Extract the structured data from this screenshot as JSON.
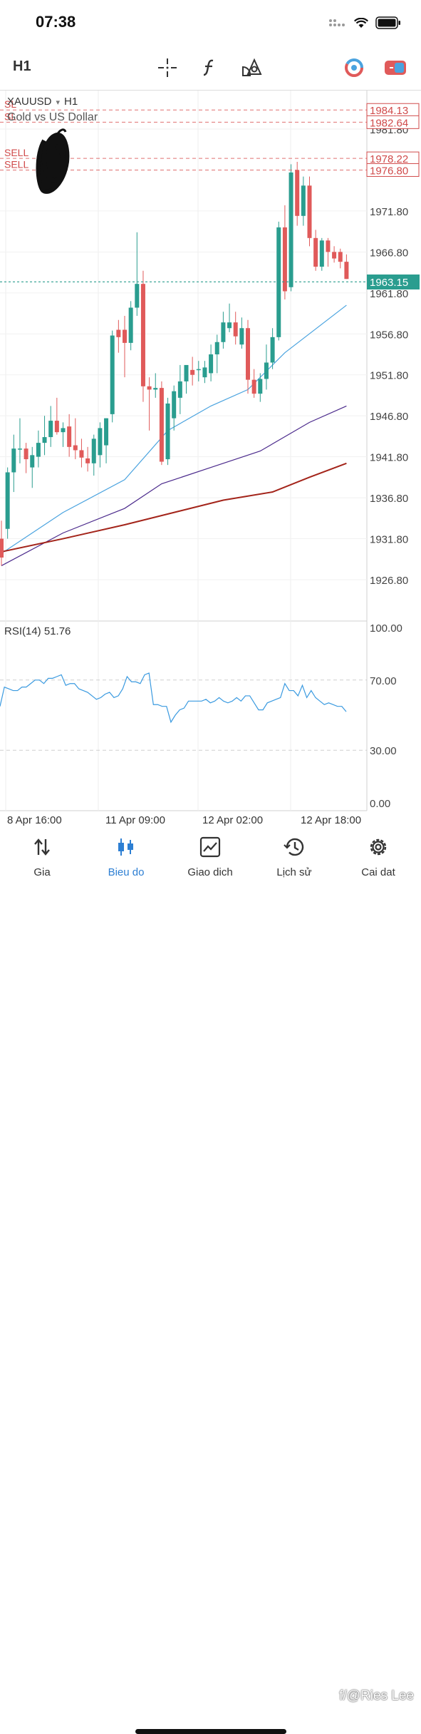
{
  "status": {
    "time": "07:38"
  },
  "toolbar": {
    "timeframe": "H1"
  },
  "chart": {
    "symbol": "XAUUSD",
    "symbol_tf": "H1",
    "description": "Gold vs US Dollar",
    "current_price": "1963.15",
    "order_lines": [
      {
        "label": "SL",
        "price": "1984.13",
        "value": 1984.13
      },
      {
        "label": "SL",
        "price": "1982.64",
        "value": 1982.64
      },
      {
        "label": "SELL",
        "price": "1978.22",
        "value": 1978.22
      },
      {
        "label": "SELL",
        "price": "1976.80",
        "value": 1976.8
      }
    ],
    "price_ticks": [
      "1981.80",
      "1971.80",
      "1966.80",
      "1961.80",
      "1956.80",
      "1951.80",
      "1946.80",
      "1941.80",
      "1936.80",
      "1931.80",
      "1926.80"
    ],
    "time_ticks": [
      "8 Apr 16:00",
      "11 Apr 09:00",
      "12 Apr 02:00",
      "12 Apr 18:00"
    ],
    "rsi_label": "RSI(14) 51.76",
    "rsi_ticks": [
      "100.00",
      "70.00",
      "30.00",
      "0.00"
    ],
    "colors": {
      "up": "#2a9d8f",
      "down": "#e05a5a",
      "ma_fast": "#4aa3df",
      "ma_mid": "#4b2a8c",
      "ma_slow": "#a3241a",
      "rsi": "#3a9ae0",
      "accent": "#2d7fd3"
    }
  },
  "chart_data": {
    "type": "candlestick",
    "symbol": "XAUUSD",
    "timeframe": "H1",
    "ylim": [
      1922.8,
      1986.3
    ],
    "candles": [
      {
        "o": 1931.8,
        "h": 1934.0,
        "l": 1928.5,
        "c": 1929.5
      },
      {
        "o": 1933.0,
        "h": 1940.5,
        "l": 1931.8,
        "c": 1939.9
      },
      {
        "o": 1939.9,
        "h": 1944.5,
        "l": 1937.5,
        "c": 1942.8
      },
      {
        "o": 1942.8,
        "h": 1946.5,
        "l": 1941.0,
        "c": 1942.8
      },
      {
        "o": 1942.8,
        "h": 1943.5,
        "l": 1939.8,
        "c": 1941.5
      },
      {
        "o": 1940.5,
        "h": 1943.0,
        "l": 1938.0,
        "c": 1942.0
      },
      {
        "o": 1941.8,
        "h": 1945.0,
        "l": 1940.5,
        "c": 1943.5
      },
      {
        "o": 1943.5,
        "h": 1946.8,
        "l": 1942.0,
        "c": 1944.2
      },
      {
        "o": 1944.2,
        "h": 1948.0,
        "l": 1943.0,
        "c": 1946.2
      },
      {
        "o": 1946.2,
        "h": 1949.0,
        "l": 1944.5,
        "c": 1944.8
      },
      {
        "o": 1944.8,
        "h": 1946.0,
        "l": 1943.0,
        "c": 1945.3
      },
      {
        "o": 1945.5,
        "h": 1947.0,
        "l": 1941.8,
        "c": 1943.0
      },
      {
        "o": 1943.2,
        "h": 1946.5,
        "l": 1941.5,
        "c": 1942.6
      },
      {
        "o": 1942.6,
        "h": 1944.0,
        "l": 1940.5,
        "c": 1941.7
      },
      {
        "o": 1941.6,
        "h": 1943.0,
        "l": 1940.0,
        "c": 1941.0
      },
      {
        "o": 1941.0,
        "h": 1944.5,
        "l": 1939.5,
        "c": 1944.0
      },
      {
        "o": 1942.0,
        "h": 1946.0,
        "l": 1940.5,
        "c": 1945.3
      },
      {
        "o": 1943.2,
        "h": 1946.5,
        "l": 1941.0,
        "c": 1946.5
      },
      {
        "o": 1947.0,
        "h": 1957.2,
        "l": 1946.0,
        "c": 1956.6
      },
      {
        "o": 1957.3,
        "h": 1958.5,
        "l": 1954.5,
        "c": 1956.4
      },
      {
        "o": 1957.3,
        "h": 1959.0,
        "l": 1951.5,
        "c": 1955.7
      },
      {
        "o": 1955.7,
        "h": 1960.8,
        "l": 1954.8,
        "c": 1960.0
      },
      {
        "o": 1960.0,
        "h": 1969.2,
        "l": 1959.0,
        "c": 1962.9
      },
      {
        "o": 1962.9,
        "h": 1964.5,
        "l": 1948.5,
        "c": 1950.4
      },
      {
        "o": 1950.4,
        "h": 1951.5,
        "l": 1945.0,
        "c": 1950.0
      },
      {
        "o": 1950.0,
        "h": 1952.0,
        "l": 1949.0,
        "c": 1950.2
      },
      {
        "o": 1950.2,
        "h": 1951.0,
        "l": 1940.8,
        "c": 1941.2
      },
      {
        "o": 1941.5,
        "h": 1949.0,
        "l": 1940.8,
        "c": 1948.3
      },
      {
        "o": 1946.5,
        "h": 1950.5,
        "l": 1945.0,
        "c": 1949.8
      },
      {
        "o": 1949.0,
        "h": 1953.0,
        "l": 1947.0,
        "c": 1951.0
      },
      {
        "o": 1951.0,
        "h": 1953.0,
        "l": 1949.5,
        "c": 1953.0
      },
      {
        "o": 1952.4,
        "h": 1954.0,
        "l": 1950.5,
        "c": 1951.8
      },
      {
        "o": 1952.4,
        "h": 1953.5,
        "l": 1951.0,
        "c": 1952.5
      },
      {
        "o": 1951.5,
        "h": 1953.5,
        "l": 1950.8,
        "c": 1952.7
      },
      {
        "o": 1952.0,
        "h": 1955.5,
        "l": 1951.0,
        "c": 1954.3
      },
      {
        "o": 1954.3,
        "h": 1956.7,
        "l": 1952.0,
        "c": 1955.8
      },
      {
        "o": 1955.8,
        "h": 1959.5,
        "l": 1955.0,
        "c": 1958.2
      },
      {
        "o": 1957.5,
        "h": 1960.5,
        "l": 1957.0,
        "c": 1958.2
      },
      {
        "o": 1958.2,
        "h": 1959.5,
        "l": 1955.5,
        "c": 1956.5
      },
      {
        "o": 1955.5,
        "h": 1958.8,
        "l": 1955.0,
        "c": 1957.5
      },
      {
        "o": 1957.5,
        "h": 1958.5,
        "l": 1949.5,
        "c": 1951.2
      },
      {
        "o": 1951.2,
        "h": 1952.5,
        "l": 1949.0,
        "c": 1949.5
      },
      {
        "o": 1949.5,
        "h": 1952.0,
        "l": 1948.5,
        "c": 1951.3
      },
      {
        "o": 1951.3,
        "h": 1955.5,
        "l": 1950.0,
        "c": 1953.3
      },
      {
        "o": 1953.3,
        "h": 1957.5,
        "l": 1952.5,
        "c": 1956.4
      },
      {
        "o": 1956.4,
        "h": 1970.5,
        "l": 1956.0,
        "c": 1969.8
      },
      {
        "o": 1969.8,
        "h": 1972.5,
        "l": 1961.0,
        "c": 1962.0
      },
      {
        "o": 1962.5,
        "h": 1977.5,
        "l": 1962.0,
        "c": 1976.5
      },
      {
        "o": 1976.8,
        "h": 1977.8,
        "l": 1970.0,
        "c": 1971.2
      },
      {
        "o": 1971.2,
        "h": 1976.0,
        "l": 1970.0,
        "c": 1974.9
      },
      {
        "o": 1974.9,
        "h": 1976.0,
        "l": 1967.5,
        "c": 1968.5
      },
      {
        "o": 1968.5,
        "h": 1969.5,
        "l": 1964.5,
        "c": 1965.0
      },
      {
        "o": 1965.0,
        "h": 1968.5,
        "l": 1964.5,
        "c": 1968.2
      },
      {
        "o": 1968.2,
        "h": 1968.5,
        "l": 1965.0,
        "c": 1966.8
      },
      {
        "o": 1966.8,
        "h": 1967.5,
        "l": 1965.5,
        "c": 1966.0
      },
      {
        "o": 1966.8,
        "h": 1967.2,
        "l": 1964.8,
        "c": 1965.6
      },
      {
        "o": 1965.6,
        "h": 1966.5,
        "l": 1963.5,
        "c": 1963.5
      }
    ],
    "moving_averages": [
      {
        "color": "#4aa3df",
        "points": [
          [
            0,
            1930.0
          ],
          [
            10,
            1935.0
          ],
          [
            20,
            1939.0
          ],
          [
            27,
            1945.0
          ],
          [
            34,
            1948.0
          ],
          [
            40,
            1950.0
          ],
          [
            46,
            1954.5
          ],
          [
            56,
            1960.3
          ]
        ]
      },
      {
        "color": "#4b2a8c",
        "points": [
          [
            0,
            1928.5
          ],
          [
            10,
            1932.5
          ],
          [
            20,
            1935.5
          ],
          [
            26,
            1938.5
          ],
          [
            34,
            1940.5
          ],
          [
            42,
            1942.5
          ],
          [
            50,
            1946.0
          ],
          [
            56,
            1948.0
          ]
        ]
      },
      {
        "color": "#a3241a",
        "points": [
          [
            0,
            1930.2
          ],
          [
            10,
            1931.8
          ],
          [
            20,
            1933.5
          ],
          [
            28,
            1935.0
          ],
          [
            36,
            1936.5
          ],
          [
            44,
            1937.5
          ],
          [
            50,
            1939.3
          ],
          [
            56,
            1941.0
          ]
        ]
      }
    ],
    "rsi": [
      55,
      66,
      65,
      64,
      64,
      66,
      66,
      68,
      70,
      70,
      68,
      71,
      71,
      72,
      73,
      67,
      68,
      68,
      65,
      64,
      63,
      61,
      59,
      60,
      62,
      63,
      60,
      61,
      65,
      72,
      69,
      69,
      68,
      73,
      74,
      56,
      56,
      55,
      55,
      46,
      50,
      53,
      54,
      58,
      58,
      58,
      58,
      59,
      57,
      58,
      60,
      58,
      57,
      58,
      60,
      58,
      61,
      61,
      57,
      53,
      53,
      57,
      58,
      59,
      60,
      68,
      64,
      64,
      61,
      67,
      60,
      64,
      60,
      58,
      56,
      57,
      56,
      55,
      55,
      52
    ]
  },
  "nav": [
    {
      "label": "Gia"
    },
    {
      "label": "Bieu do"
    },
    {
      "label": "Giao dich"
    },
    {
      "label": "Lịch sử"
    },
    {
      "label": "Cai dat"
    }
  ],
  "watermark": "f/@Ries Lee"
}
